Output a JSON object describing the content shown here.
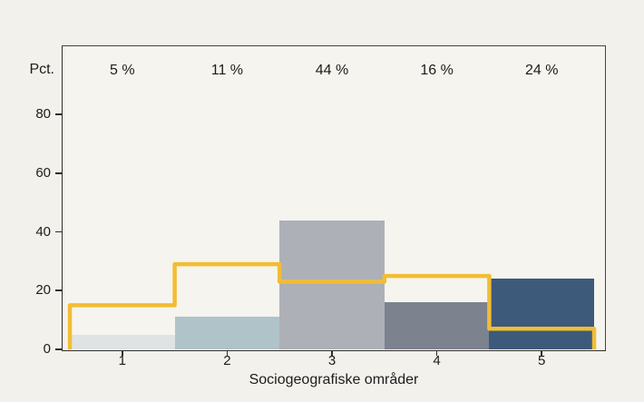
{
  "page": {
    "background_color": "#f2f1ec",
    "plot_background_color": "#f5f4ef",
    "axis_color": "#2f2d29",
    "text_color": "#1d1d1b"
  },
  "chart_data": {
    "type": "bar",
    "title": "",
    "xlabel": "Sociogeografiske områder",
    "ylabel": "Pct.",
    "categories": [
      "1",
      "2",
      "3",
      "4",
      "5"
    ],
    "bin_edges": [
      0.5,
      1.5,
      2.5,
      3.5,
      4.5,
      5.5
    ],
    "yticks": [
      0,
      20,
      40,
      60,
      80
    ],
    "ylim": [
      0,
      104
    ],
    "grid": false,
    "legend": "none",
    "series": [
      {
        "name": "bars",
        "type": "bar",
        "values": [
          5,
          11,
          44,
          16,
          24
        ],
        "data_labels": [
          "5 %",
          "11 %",
          "44 %",
          "16 %",
          "24 %"
        ],
        "colors": [
          "#dfe3e4",
          "#afc3c9",
          "#adb0b7",
          "#7c838e",
          "#3e5a7b"
        ]
      },
      {
        "name": "step-line",
        "type": "step",
        "values": [
          15,
          29,
          23,
          25,
          7
        ],
        "color": "#f2bd33",
        "stroke_width": 4.5
      }
    ]
  }
}
